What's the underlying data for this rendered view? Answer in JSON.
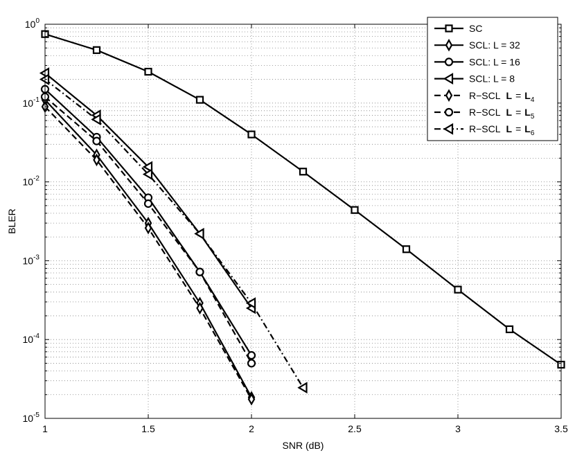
{
  "chart_data": {
    "type": "line",
    "title": "",
    "xlabel": "SNR (dB)",
    "ylabel": "BLER",
    "xlim": [
      1,
      3.5
    ],
    "ylim": [
      1e-05,
      1
    ],
    "yscale": "log",
    "grid": true,
    "legend_position": "top-right",
    "x_ticks": [
      "1",
      "1.5",
      "2",
      "2.5",
      "3",
      "3.5"
    ],
    "y_ticks": [
      {
        "base": "10",
        "exp": "-5"
      },
      {
        "base": "10",
        "exp": "-4"
      },
      {
        "base": "10",
        "exp": "-3"
      },
      {
        "base": "10",
        "exp": "-2"
      },
      {
        "base": "10",
        "exp": "-1"
      },
      {
        "base": "10",
        "exp": "0"
      }
    ],
    "series": [
      {
        "name": "SC",
        "style": "solid",
        "marker": "square",
        "x": [
          1,
          1.25,
          1.5,
          1.75,
          2,
          2.25,
          2.5,
          2.75,
          3,
          3.25,
          3.5
        ],
        "y": [
          0.75,
          0.47,
          0.25,
          0.11,
          0.04,
          0.0135,
          0.0044,
          0.0014,
          0.00043,
          0.000135,
          4.8e-05
        ]
      },
      {
        "name": "SCL: L = 32",
        "style": "solid",
        "marker": "diamond",
        "x": [
          1,
          1.25,
          1.5,
          1.75,
          2
        ],
        "y": [
          0.11,
          0.022,
          0.003,
          0.00029,
          1.85e-05
        ]
      },
      {
        "name": "SCL: L = 16",
        "style": "solid",
        "marker": "circle",
        "x": [
          1,
          1.25,
          1.5,
          1.75,
          2
        ],
        "y": [
          0.15,
          0.037,
          0.0063,
          0.00072,
          6.3e-05
        ]
      },
      {
        "name": "SCL: L = 8",
        "style": "solid",
        "marker": "triangle-left",
        "x": [
          1,
          1.25,
          1.5,
          1.75,
          2
        ],
        "y": [
          0.24,
          0.07,
          0.0155,
          0.0022,
          0.00025
        ]
      },
      {
        "name": "R–SCL  L = L4",
        "style": "dashed",
        "marker": "diamond",
        "x": [
          1,
          1.25,
          1.5,
          1.75,
          2
        ],
        "y": [
          0.09,
          0.019,
          0.0026,
          0.00025,
          1.75e-05
        ]
      },
      {
        "name": "R–SCL  L = L5",
        "style": "dashed",
        "marker": "circle",
        "x": [
          1,
          1.25,
          1.5,
          1.75,
          2
        ],
        "y": [
          0.12,
          0.033,
          0.0053,
          0.00072,
          5e-05
        ]
      },
      {
        "name": "R–SCL  L = L6",
        "style": "dashdot",
        "marker": "triangle-left",
        "x": [
          1,
          1.25,
          1.5,
          1.75,
          2,
          2.25
        ],
        "y": [
          0.2,
          0.062,
          0.0125,
          0.0022,
          0.00029,
          2.45e-05
        ]
      }
    ],
    "legend": [
      {
        "text": "SC"
      },
      {
        "text": "SCL: L = 32"
      },
      {
        "text": "SCL: L = 16"
      },
      {
        "text": "SCL: L = 8"
      },
      {
        "prefix": "R−SCL",
        "bold": "L",
        "eq": "=",
        "bold2": "L",
        "sub": "4"
      },
      {
        "prefix": "R−SCL",
        "bold": "L",
        "eq": "=",
        "bold2": "L",
        "sub": "5"
      },
      {
        "prefix": "R−SCL",
        "bold": "L",
        "eq": "=",
        "bold2": "L",
        "sub": "6"
      }
    ],
    "colors": {
      "line": "#000000",
      "grid": "#808080",
      "marker_fill": "#ffffff",
      "background": "#ffffff"
    }
  }
}
